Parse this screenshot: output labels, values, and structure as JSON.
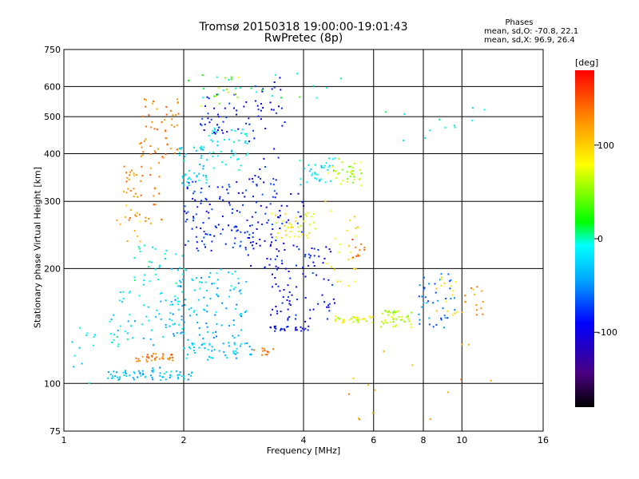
{
  "chart_data": {
    "type": "scatter",
    "title": "Tromsø 20150318 19:00:00-19:01:43",
    "subtitle": "RwPretec (8p)",
    "xlabel": "Frequency [MHz]",
    "ylabel": "Stationary phase Virtual Height [km]",
    "x_scale": "log",
    "y_scale": "log",
    "xlim": [
      1,
      16
    ],
    "ylim": [
      75,
      750
    ],
    "x_ticks": [
      1,
      2,
      4,
      6,
      8,
      10,
      16
    ],
    "y_ticks": [
      75,
      100,
      200,
      300,
      400,
      500,
      600,
      750
    ],
    "grid": true,
    "stats": {
      "heading": "Phases",
      "line_o": "mean, sd,O: -70.8, 22.1",
      "line_x": "mean, sd,X:  96.9, 26.4"
    },
    "colorbar": {
      "label": "[deg]",
      "range": [
        -180,
        180
      ],
      "ticks": [
        100,
        0,
        -100
      ]
    },
    "clusters": [
      {
        "x": [
          1.05,
          1.2
        ],
        "y": [
          100,
          140
        ],
        "phase": -20,
        "n": 12
      },
      {
        "x": [
          1.28,
          1.75
        ],
        "y": [
          102,
          110
        ],
        "phase": -35,
        "n": 45
      },
      {
        "x": [
          1.75,
          2.1
        ],
        "y": [
          102,
          108
        ],
        "phase": -30,
        "n": 25
      },
      {
        "x": [
          1.3,
          1.45
        ],
        "y": [
          125,
          140
        ],
        "phase": -10,
        "n": 8
      },
      {
        "x": [
          1.5,
          1.9
        ],
        "y": [
          114,
          120
        ],
        "phase": 140,
        "n": 35
      },
      {
        "x": [
          2.0,
          3.0
        ],
        "y": [
          115,
          128
        ],
        "phase": -30,
        "n": 55
      },
      {
        "x": [
          1.3,
          2.0
        ],
        "y": [
          125,
          175
        ],
        "phase": -25,
        "n": 50
      },
      {
        "x": [
          1.8,
          2.8
        ],
        "y": [
          130,
          190
        ],
        "phase": -40,
        "n": 70
      },
      {
        "x": [
          1.9,
          2.9
        ],
        "y": [
          150,
          200
        ],
        "phase": -20,
        "n": 45
      },
      {
        "x": [
          1.5,
          2.0
        ],
        "y": [
          180,
          230
        ],
        "phase": -10,
        "n": 30
      },
      {
        "x": [
          1.4,
          1.8
        ],
        "y": [
          260,
          380
        ],
        "phase": 130,
        "n": 45
      },
      {
        "x": [
          1.55,
          1.95
        ],
        "y": [
          380,
          560
        ],
        "phase": 135,
        "n": 55
      },
      {
        "x": [
          1.35,
          1.65
        ],
        "y": [
          230,
          300
        ],
        "phase": 100,
        "n": 10
      },
      {
        "x": [
          1.95,
          2.3
        ],
        "y": [
          330,
          420
        ],
        "phase": -20,
        "n": 45
      },
      {
        "x": [
          2.3,
          2.9
        ],
        "y": [
          360,
          470
        ],
        "phase": -15,
        "n": 45
      },
      {
        "x": [
          2.0,
          3.0
        ],
        "y": [
          220,
          340
        ],
        "phase": -80,
        "n": 110
      },
      {
        "x": [
          2.2,
          3.0
        ],
        "y": [
          450,
          580
        ],
        "phase": -85,
        "n": 40
      },
      {
        "x": [
          2.2,
          2.8
        ],
        "y": [
          520,
          640
        ],
        "phase": 60,
        "n": 10
      },
      {
        "x": [
          2.9,
          3.5
        ],
        "y": [
          200,
          440
        ],
        "phase": -85,
        "n": 60
      },
      {
        "x": [
          3.0,
          3.6
        ],
        "y": [
          460,
          640
        ],
        "phase": -90,
        "n": 25
      },
      {
        "x": [
          3.3,
          4.3
        ],
        "y": [
          240,
          280
        ],
        "phase": 80,
        "n": 40
      },
      {
        "x": [
          3.3,
          4.0
        ],
        "y": [
          140,
          320
        ],
        "phase": -90,
        "n": 70
      },
      {
        "x": [
          3.2,
          4.2
        ],
        "y": [
          137,
          142
        ],
        "phase": -95,
        "n": 25
      },
      {
        "x": [
          3.0,
          3.4
        ],
        "y": [
          118,
          125
        ],
        "phase": 140,
        "n": 12
      },
      {
        "x": [
          3.9,
          4.8
        ],
        "y": [
          330,
          390
        ],
        "phase": -20,
        "n": 35
      },
      {
        "x": [
          4.6,
          5.6
        ],
        "y": [
          330,
          390
        ],
        "phase": 60,
        "n": 35
      },
      {
        "x": [
          4.0,
          4.8
        ],
        "y": [
          140,
          230
        ],
        "phase": -90,
        "n": 40
      },
      {
        "x": [
          4.5,
          5.5
        ],
        "y": [
          180,
          300
        ],
        "phase": 90,
        "n": 25
      },
      {
        "x": [
          5.3,
          5.7
        ],
        "y": [
          210,
          240
        ],
        "phase": 150,
        "n": 10
      },
      {
        "x": [
          4.8,
          6.0
        ],
        "y": [
          144,
          150
        ],
        "phase": 75,
        "n": 35
      },
      {
        "x": [
          6.2,
          7.5
        ],
        "y": [
          140,
          155
        ],
        "phase": 60,
        "n": 45
      },
      {
        "x": [
          7.6,
          9.6
        ],
        "y": [
          140,
          195
        ],
        "phase": -60,
        "n": 40
      },
      {
        "x": [
          8.6,
          9.8
        ],
        "y": [
          150,
          190
        ],
        "phase": 90,
        "n": 15
      },
      {
        "x": [
          10.0,
          11.3
        ],
        "y": [
          150,
          180
        ],
        "phase": 120,
        "n": 15
      },
      {
        "x": [
          2.0,
          5.0
        ],
        "y": [
          560,
          650
        ],
        "phase": 10,
        "n": 25
      },
      {
        "x": [
          6.0,
          12.0
        ],
        "y": [
          430,
          530
        ],
        "phase": -10,
        "n": 12
      },
      {
        "x": [
          5.0,
          12.0
        ],
        "y": [
          80,
          130
        ],
        "phase": 120,
        "n": 15
      }
    ]
  }
}
